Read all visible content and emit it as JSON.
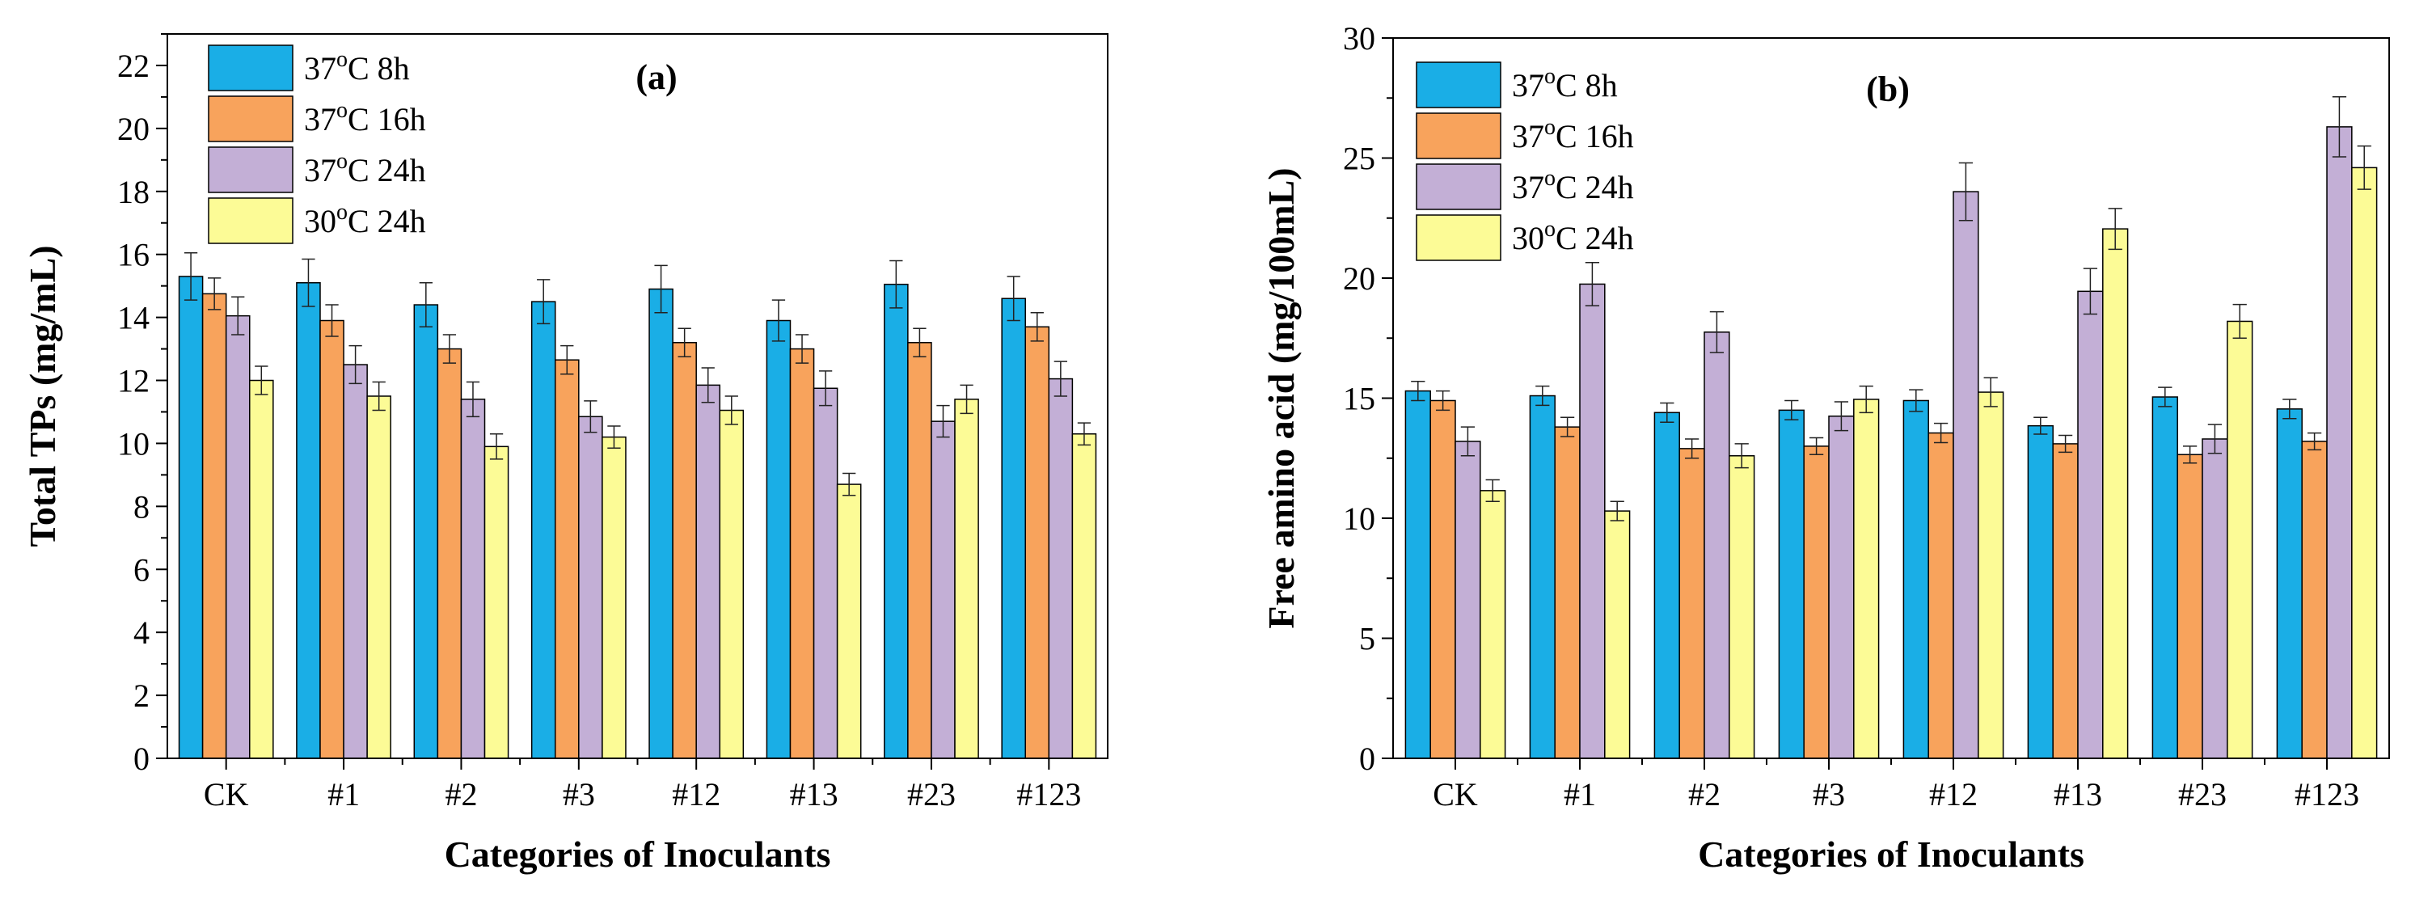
{
  "chart_data": [
    {
      "type": "bar",
      "panel": "(a)",
      "categories": [
        "CK",
        "#1",
        "#2",
        "#3",
        "#12",
        "#13",
        "#23",
        "#123"
      ],
      "xlabel": "Categories of Inoculants",
      "ylabel": "Total TPs (mg/mL)",
      "ylim": [
        0,
        23
      ],
      "yticks": [
        0,
        2,
        4,
        6,
        8,
        10,
        12,
        14,
        16,
        18,
        20,
        22
      ],
      "legend_position": "top-left",
      "series": [
        {
          "name_main": "37",
          "name_sup": "o",
          "name_rest": "C 8h",
          "color": "#1aaee6",
          "values": [
            15.3,
            15.1,
            14.4,
            14.5,
            14.9,
            13.9,
            15.05,
            14.6
          ],
          "errors": [
            0.75,
            0.75,
            0.7,
            0.7,
            0.75,
            0.65,
            0.75,
            0.7
          ]
        },
        {
          "name_main": "37",
          "name_sup": "o",
          "name_rest": "C 16h",
          "color": "#f8a35c",
          "values": [
            14.75,
            13.9,
            13.0,
            12.65,
            13.2,
            13.0,
            13.2,
            13.7
          ],
          "errors": [
            0.5,
            0.5,
            0.45,
            0.45,
            0.45,
            0.45,
            0.45,
            0.45
          ]
        },
        {
          "name_main": "37",
          "name_sup": "o",
          "name_rest": "C 24h",
          "color": "#c3afd6",
          "values": [
            14.05,
            12.5,
            11.4,
            10.85,
            11.85,
            11.75,
            10.7,
            12.05
          ],
          "errors": [
            0.6,
            0.6,
            0.55,
            0.5,
            0.55,
            0.55,
            0.5,
            0.55
          ]
        },
        {
          "name_main": "30",
          "name_sup": "o",
          "name_rest": "C 24h",
          "color": "#fcfb96",
          "values": [
            12.0,
            11.5,
            9.9,
            10.2,
            11.05,
            8.7,
            11.4,
            10.3
          ],
          "errors": [
            0.45,
            0.45,
            0.4,
            0.35,
            0.45,
            0.35,
            0.45,
            0.35
          ]
        }
      ]
    },
    {
      "type": "bar",
      "panel": "(b)",
      "categories": [
        "CK",
        "#1",
        "#2",
        "#3",
        "#12",
        "#13",
        "#23",
        "#123"
      ],
      "xlabel": "Categories of Inoculants",
      "ylabel": "Free amino acid (mg/100mL)",
      "ylim": [
        0,
        30
      ],
      "yticks": [
        0,
        5,
        10,
        15,
        20,
        25,
        30
      ],
      "legend_position": "top-left",
      "series": [
        {
          "name_main": "37",
          "name_sup": "o",
          "name_rest": "C 8h",
          "color": "#1aaee6",
          "values": [
            15.3,
            15.1,
            14.4,
            14.5,
            14.9,
            13.85,
            15.05,
            14.55
          ],
          "errors": [
            0.4,
            0.4,
            0.4,
            0.4,
            0.45,
            0.35,
            0.4,
            0.4
          ]
        },
        {
          "name_main": "37",
          "name_sup": "o",
          "name_rest": "C 16h",
          "color": "#f8a35c",
          "values": [
            14.9,
            13.8,
            12.9,
            13.0,
            13.55,
            13.1,
            12.65,
            13.2
          ],
          "errors": [
            0.4,
            0.4,
            0.4,
            0.35,
            0.4,
            0.35,
            0.35,
            0.35
          ]
        },
        {
          "name_main": "37",
          "name_sup": "o",
          "name_rest": "C 24h",
          "color": "#c3afd6",
          "values": [
            13.2,
            19.75,
            17.75,
            14.25,
            23.6,
            19.45,
            13.3,
            26.3
          ],
          "errors": [
            0.6,
            0.9,
            0.85,
            0.6,
            1.2,
            0.95,
            0.6,
            1.25
          ]
        },
        {
          "name_main": "30",
          "name_sup": "o",
          "name_rest": "C 24h",
          "color": "#fcfb96",
          "values": [
            11.15,
            10.3,
            12.6,
            14.95,
            15.25,
            22.05,
            18.2,
            24.6
          ],
          "errors": [
            0.45,
            0.4,
            0.5,
            0.55,
            0.6,
            0.85,
            0.7,
            0.9
          ]
        }
      ]
    }
  ]
}
